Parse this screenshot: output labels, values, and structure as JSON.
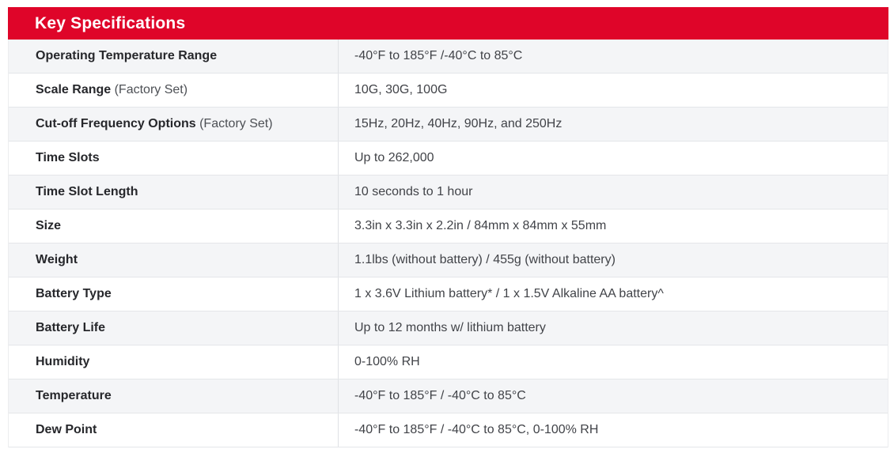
{
  "table": {
    "title": "Key Specifications",
    "rows": [
      {
        "label": "Operating Temperature Range",
        "suffix": "",
        "value": "-40°F to 185°F /-40°C to 85°C"
      },
      {
        "label": "Scale Range",
        "suffix": " (Factory Set)",
        "value": "10G, 30G, 100G"
      },
      {
        "label": "Cut-off Frequency Options",
        "suffix": " (Factory Set)",
        "value": "15Hz, 20Hz, 40Hz, 90Hz, and 250Hz"
      },
      {
        "label": "Time Slots",
        "suffix": "",
        "value": "Up to 262,000"
      },
      {
        "label": "Time Slot Length",
        "suffix": "",
        "value": "10 seconds to 1 hour"
      },
      {
        "label": "Size",
        "suffix": "",
        "value": "3.3in x 3.3in x 2.2in / 84mm x 84mm x 55mm"
      },
      {
        "label": "Weight",
        "suffix": "",
        "value": "1.1lbs (without battery) / 455g (without battery)"
      },
      {
        "label": "Battery Type",
        "suffix": "",
        "value": "1 x 3.6V Lithium battery* / 1 x 1.5V Alkaline AA battery^"
      },
      {
        "label": "Battery Life",
        "suffix": "",
        "value": "Up to 12 months w/ lithium battery"
      },
      {
        "label": "Humidity",
        "suffix": "",
        "value": "0-100% RH"
      },
      {
        "label": "Temperature",
        "suffix": "",
        "value": "-40°F to 185°F / -40°C to 85°C"
      },
      {
        "label": "Dew Point",
        "suffix": "",
        "value": "-40°F to 185°F / -40°C to 85°C, 0-100% RH"
      }
    ]
  },
  "colors": {
    "header_bg": "#DF0529",
    "header_text": "#FFFFFF",
    "row_alt_bg": "#F4F5F7",
    "row_bg": "#FFFFFF",
    "row_border": "#E4E6E9",
    "column_divider": "#DFE1E5",
    "label_text": "#26272B",
    "suffix_text": "#4D5055",
    "value_text": "#414348"
  }
}
